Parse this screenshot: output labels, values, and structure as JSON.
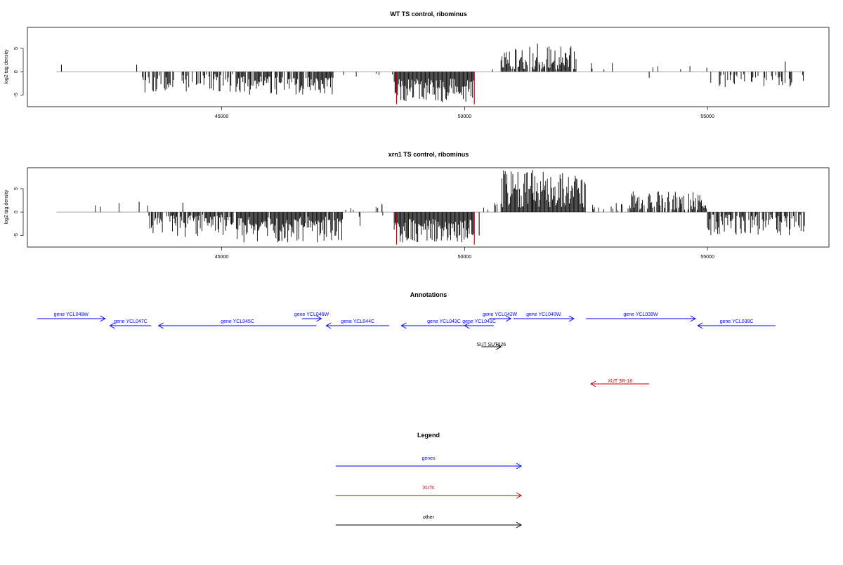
{
  "colors": {
    "genes": "#0000ff",
    "xuts": "#cc0000",
    "other": "#000000",
    "cutoff": "#cc0000",
    "bars": "#000000",
    "baseline": "#888888"
  },
  "chart_data": [
    {
      "type": "bar",
      "title": "WT TS control, ribominus",
      "xlabel": "",
      "ylabel": "log2 tag density",
      "xlim": [
        41000,
        57500
      ],
      "ylim": [
        -7.5,
        9.5
      ],
      "x_ticks": [
        45000,
        50000,
        55000
      ],
      "y_ticks": [
        -5,
        0,
        5
      ],
      "y_tick_labels": [
        "-5",
        "0",
        "5"
      ],
      "grid": false,
      "baseline_range": [
        41600,
        57000
      ],
      "red_lines": [
        48600,
        50200
      ],
      "regions": [
        {
          "x": [
            41600,
            43300
          ],
          "sign": -1,
          "density": 0.0,
          "min": 0.0,
          "max": 0.0
        },
        {
          "x": [
            43350,
            45400
          ],
          "sign": -1,
          "density": 0.6,
          "min": 0.5,
          "max": 4.5
        },
        {
          "x": [
            45400,
            47300
          ],
          "sign": -1,
          "density": 0.85,
          "min": 1.0,
          "max": 5.0
        },
        {
          "x": [
            47300,
            48550
          ],
          "sign": -1,
          "density": 0.05,
          "min": 0.3,
          "max": 1.5
        },
        {
          "x": [
            48550,
            50200
          ],
          "sign": -1,
          "density": 1.0,
          "min": 1.5,
          "max": 6.5
        },
        {
          "x": [
            50400,
            50750
          ],
          "sign": 1,
          "density": 0.1,
          "min": 0.5,
          "max": 1.5
        },
        {
          "x": [
            50750,
            52300
          ],
          "sign": 1,
          "density": 0.85,
          "min": 0.5,
          "max": 5.5
        },
        {
          "x": [
            52400,
            54500
          ],
          "sign": 1,
          "density": 0.06,
          "min": 0.5,
          "max": 2.5
        },
        {
          "x": [
            54500,
            55000
          ],
          "sign": 1,
          "density": 0.04,
          "min": 0.3,
          "max": 1.5
        },
        {
          "x": [
            55050,
            56800
          ],
          "sign": -1,
          "density": 0.35,
          "min": 0.5,
          "max": 3.5
        },
        {
          "x": [
            56800,
            57000
          ],
          "sign": -1,
          "density": 0.3,
          "min": 0.5,
          "max": 4.0
        }
      ],
      "spikes": [
        {
          "x": 41700,
          "y": 1.5
        },
        {
          "x": 43250,
          "y": 1.5
        },
        {
          "x": 51500,
          "y": 6.0
        },
        {
          "x": 56600,
          "y": 2.2
        },
        {
          "x": 53800,
          "y": -1.3
        }
      ]
    },
    {
      "type": "bar",
      "title": "xrn1 TS control, ribominus",
      "xlabel": "",
      "ylabel": "log2 tag density",
      "xlim": [
        41000,
        57500
      ],
      "ylim": [
        -7.5,
        9.5
      ],
      "x_ticks": [
        45000,
        50000,
        55000
      ],
      "y_ticks": [
        -5,
        0,
        5
      ],
      "y_tick_labels": [
        "-5",
        "0",
        "5"
      ],
      "grid": false,
      "baseline_range": [
        41600,
        57000
      ],
      "red_lines": [
        48600,
        50200
      ],
      "regions": [
        {
          "x": [
            42400,
            43500
          ],
          "sign": 1,
          "density": 0.05,
          "min": 0.5,
          "max": 2.0
        },
        {
          "x": [
            43500,
            45300
          ],
          "sign": -1,
          "density": 0.75,
          "min": 0.5,
          "max": 5.5
        },
        {
          "x": [
            45300,
            47500
          ],
          "sign": -1,
          "density": 0.95,
          "min": 1.0,
          "max": 6.5
        },
        {
          "x": [
            47500,
            48500
          ],
          "sign": 1,
          "density": 0.08,
          "min": 0.3,
          "max": 1.8
        },
        {
          "x": [
            47500,
            48500
          ],
          "sign": -1,
          "density": 0.12,
          "min": 0.5,
          "max": 3.0
        },
        {
          "x": [
            48550,
            50200
          ],
          "sign": -1,
          "density": 1.0,
          "min": 1.5,
          "max": 6.5
        },
        {
          "x": [
            50200,
            50750
          ],
          "sign": 1,
          "density": 0.1,
          "min": 0.5,
          "max": 2.5
        },
        {
          "x": [
            50750,
            52500
          ],
          "sign": 1,
          "density": 1.0,
          "min": 1.0,
          "max": 9.0
        },
        {
          "x": [
            52600,
            53400
          ],
          "sign": 1,
          "density": 0.25,
          "min": 0.3,
          "max": 2.0
        },
        {
          "x": [
            53400,
            55000
          ],
          "sign": 1,
          "density": 0.7,
          "min": 0.5,
          "max": 4.5
        },
        {
          "x": [
            55000,
            57000
          ],
          "sign": -1,
          "density": 0.7,
          "min": 0.5,
          "max": 5.0
        }
      ],
      "spikes": [
        {
          "x": 43300,
          "y": 2.2
        },
        {
          "x": 44200,
          "y": 2.0
        },
        {
          "x": 51400,
          "y": 9.0
        },
        {
          "x": 50300,
          "y": -5.0
        },
        {
          "x": 48300,
          "y": 1.5
        }
      ]
    }
  ],
  "annotations": {
    "title": "Annotations",
    "genes": [
      {
        "label": "gene YCL048W",
        "start": 41200,
        "end": 42600,
        "strand": "+",
        "row": 0
      },
      {
        "label": "gene YCL047C",
        "start": 42700,
        "end": 43550,
        "strand": "-",
        "row": 1
      },
      {
        "label": "gene YCL046W",
        "start": 46650,
        "end": 47050,
        "strand": "+",
        "row": 0
      },
      {
        "label": "gene YCL045C",
        "start": 43700,
        "end": 46950,
        "strand": "-",
        "row": 1
      },
      {
        "label": "gene YCL044C",
        "start": 47150,
        "end": 48450,
        "strand": "-",
        "row": 1
      },
      {
        "label": "gene YCL043C",
        "start": 48700,
        "end": 50450,
        "strand": "-",
        "row": 1
      },
      {
        "label": "gene YCL042W",
        "start": 50500,
        "end": 50950,
        "strand": "+",
        "row": 0
      },
      {
        "label": "gene YCL041C",
        "start": 50000,
        "end": 50600,
        "strand": "-",
        "row": 1
      },
      {
        "label": "gene YCL040W",
        "start": 51000,
        "end": 52250,
        "strand": "+",
        "row": 0
      },
      {
        "label": "gene YCL039W",
        "start": 52500,
        "end": 54750,
        "strand": "+",
        "row": 0
      },
      {
        "label": "gene YCL038C",
        "start": 54800,
        "end": 56400,
        "strand": "-",
        "row": 1
      }
    ],
    "others": [
      {
        "label": "SUT SUT026",
        "start": 50350,
        "end": 50750,
        "strand": "+"
      }
    ],
    "xuts": [
      {
        "label": "XUT 3R-18",
        "start": 52600,
        "end": 53800,
        "strand": "-"
      }
    ]
  },
  "legend": {
    "title": "Legend",
    "items": [
      {
        "label": "genes",
        "color": "#0000ff"
      },
      {
        "label": "XUTs",
        "color": "#cc0000"
      },
      {
        "label": "other",
        "color": "#000000"
      }
    ]
  }
}
